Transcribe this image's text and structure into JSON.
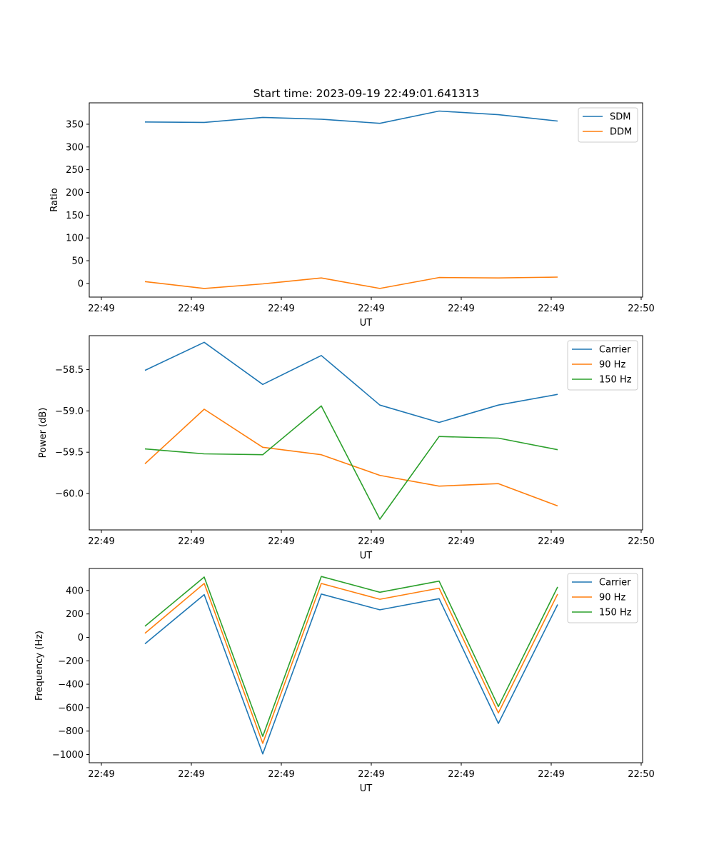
{
  "figure": {
    "title": "Start time: 2023-09-19 22:49:01.641313"
  },
  "chart_data": [
    {
      "type": "line",
      "title": "Start time: 2023-09-19 22:49:01.641313",
      "xlabel": "UT",
      "ylabel": "Ratio",
      "x_tick_labels": [
        "22:49",
        "22:49",
        "22:49",
        "22:49",
        "22:49",
        "22:49",
        "22:50"
      ],
      "y_ticks": [
        0,
        50,
        100,
        150,
        200,
        250,
        300,
        350
      ],
      "y_tick_labels": [
        "0",
        "50",
        "100",
        "150",
        "200",
        "250",
        "300",
        "350"
      ],
      "ylim": [
        -30,
        397
      ],
      "legend_position": "upper-right",
      "series": [
        {
          "name": "SDM",
          "color": "#1f77b4",
          "values": [
            355,
            354,
            365,
            361,
            352,
            379,
            371,
            357
          ]
        },
        {
          "name": "DDM",
          "color": "#ff7f0e",
          "values": [
            4,
            -11,
            -1,
            12,
            -11,
            13,
            12,
            14
          ]
        }
      ]
    },
    {
      "type": "line",
      "title": "",
      "xlabel": "UT",
      "ylabel": "Power (dB)",
      "x_tick_labels": [
        "22:49",
        "22:49",
        "22:49",
        "22:49",
        "22:49",
        "22:49",
        "22:50"
      ],
      "y_ticks": [
        -60.0,
        -59.5,
        -59.0,
        -58.5
      ],
      "y_tick_labels": [
        "−60.0",
        "−59.5",
        "−59.0",
        "−58.5"
      ],
      "ylim": [
        -60.44,
        -58.09
      ],
      "legend_position": "upper-right",
      "series": [
        {
          "name": "Carrier",
          "color": "#1f77b4",
          "values": [
            -58.51,
            -58.17,
            -58.68,
            -58.33,
            -58.93,
            -59.14,
            -58.93,
            -58.8
          ]
        },
        {
          "name": "90 Hz",
          "color": "#ff7f0e",
          "values": [
            -59.64,
            -58.98,
            -59.44,
            -59.53,
            -59.78,
            -59.91,
            -59.88,
            -60.15
          ]
        },
        {
          "name": "150 Hz",
          "color": "#2ca02c",
          "values": [
            -59.46,
            -59.52,
            -59.53,
            -58.94,
            -60.31,
            -59.31,
            -59.33,
            -59.47
          ]
        }
      ]
    },
    {
      "type": "line",
      "title": "",
      "xlabel": "UT",
      "ylabel": "Frequency (Hz)",
      "x_tick_labels": [
        "22:49",
        "22:49",
        "22:49",
        "22:49",
        "22:49",
        "22:49",
        "22:50"
      ],
      "y_ticks": [
        -1000,
        -800,
        -600,
        -400,
        -200,
        0,
        200,
        400
      ],
      "y_tick_labels": [
        "−1000",
        "−800",
        "−600",
        "−400",
        "−200",
        "0",
        "200",
        "400"
      ],
      "ylim": [
        -1070,
        588
      ],
      "legend_position": "upper-right",
      "series": [
        {
          "name": "Carrier",
          "color": "#1f77b4",
          "values": [
            -55,
            365,
            -995,
            370,
            235,
            330,
            -735,
            280
          ]
        },
        {
          "name": "90 Hz",
          "color": "#ff7f0e",
          "values": [
            35,
            460,
            -905,
            460,
            325,
            420,
            -645,
            370
          ]
        },
        {
          "name": "150 Hz",
          "color": "#2ca02c",
          "values": [
            95,
            515,
            -845,
            520,
            385,
            480,
            -590,
            430
          ]
        }
      ]
    }
  ]
}
